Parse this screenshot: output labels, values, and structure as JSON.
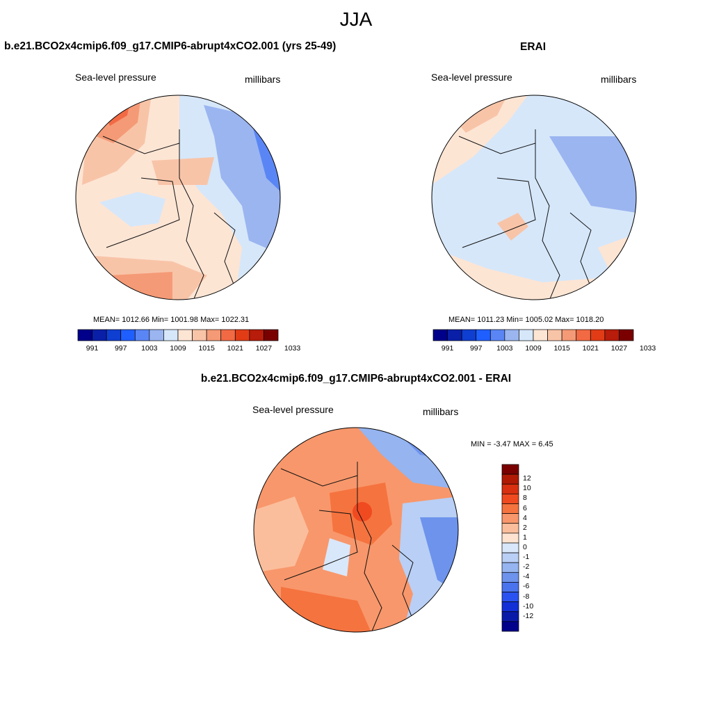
{
  "figure": {
    "title": "JJA"
  },
  "panels": {
    "model": {
      "title": "b.e21.BCO2x4cmip6.f09_g17.CMIP6-abrupt4xCO2.001 (yrs 25-49)",
      "left_label": "Sea-level pressure",
      "right_label": "millibars",
      "stats": "MEAN= 1012.66  Min= 1001.98  Max= 1022.31"
    },
    "obs": {
      "title": "ERAI",
      "left_label": "Sea-level pressure",
      "right_label": "millibars",
      "stats": "MEAN= 1011.23  Min= 1005.02  Max= 1018.20"
    },
    "diff": {
      "title": "b.e21.BCO2x4cmip6.f09_g17.CMIP6-abrupt4xCO2.001 - ERAI",
      "left_label": "Sea-level pressure",
      "right_label": "millibars",
      "stats": "MIN =  -3.47 MAX =   6.45"
    }
  },
  "colorbars": {
    "abs": {
      "colors": [
        "#00008b",
        "#0a1fa8",
        "#0f3fd0",
        "#1f5fff",
        "#5a86f5",
        "#9bb5f0",
        "#d6e7fa",
        "#fde5d4",
        "#f8c4a8",
        "#f59a76",
        "#f26a44",
        "#e23c17",
        "#b81c0a",
        "#7a0000"
      ],
      "ticks": [
        "991",
        "997",
        "1003",
        "1009",
        "1015",
        "1021",
        "1027",
        "1033"
      ]
    },
    "diff": {
      "colors": [
        "#7a0000",
        "#b01a05",
        "#d83010",
        "#f04a20",
        "#f5733f",
        "#f8976b",
        "#fbbe9c",
        "#fde3d0",
        "#d9e7fa",
        "#b9cff5",
        "#95b4f0",
        "#6d93ec",
        "#4a73ee",
        "#2a52f0",
        "#1230d6",
        "#0a1aa8",
        "#00008b"
      ],
      "ticks": [
        "12",
        "10",
        "8",
        "6",
        "4",
        "2",
        "1",
        "0",
        "-1",
        "-2",
        "-4",
        "-6",
        "-8",
        "-10",
        "-12"
      ]
    }
  }
}
